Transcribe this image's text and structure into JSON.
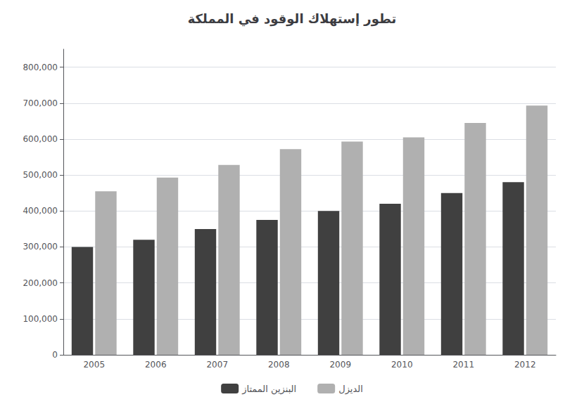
{
  "chart_data": {
    "type": "bar",
    "title": "تطور إستهلاك الوقود في المملكة",
    "categories": [
      "2005",
      "2006",
      "2007",
      "2008",
      "2009",
      "2010",
      "2011",
      "2012"
    ],
    "series": [
      {
        "name": "البنزين الممتاز",
        "color": "#404040",
        "values": [
          300000,
          320000,
          350000,
          375000,
          400000,
          420000,
          450000,
          480000
        ]
      },
      {
        "name": "الديزل",
        "color": "#b0b0b0",
        "values": [
          455000,
          493000,
          528000,
          572000,
          593000,
          605000,
          645000,
          693000
        ]
      }
    ],
    "ylim": [
      0,
      850000
    ],
    "yticks": [
      0,
      {
        "value": 100000,
        "label": "100,000"
      },
      {
        "value": 200000,
        "label": "200,000"
      },
      {
        "value": 300000,
        "label": "300,000"
      },
      {
        "value": 400000,
        "label": "400,000"
      },
      {
        "value": 500000,
        "label": "500,000"
      },
      {
        "value": 600000,
        "label": "600,000"
      },
      {
        "value": 700000,
        "label": "700,000"
      },
      {
        "value": 800000,
        "label": "800,000"
      }
    ],
    "grid": true,
    "legend": "bottom"
  }
}
